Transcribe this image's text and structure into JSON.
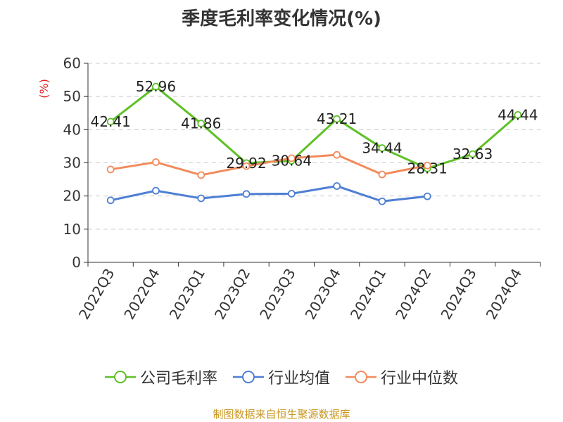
{
  "title": "季度毛利率变化情况(%)",
  "source": "制图数据来自恒生聚源数据库",
  "chart_data": {
    "type": "line",
    "title": "季度毛利率变化情况(%)",
    "ylabel": "(%)",
    "xlabel": "",
    "ylim": [
      0,
      60
    ],
    "yticks": [
      0,
      10,
      20,
      30,
      40,
      50,
      60
    ],
    "grid": true,
    "legend_position": "bottom",
    "categories": [
      "2022Q3",
      "2022Q4",
      "2023Q1",
      "2023Q2",
      "2023Q3",
      "2023Q4",
      "2024Q1",
      "2024Q2",
      "2024Q3",
      "2024Q4"
    ],
    "series": [
      {
        "name": "公司毛利率",
        "color": "#5ec126",
        "show_labels": true,
        "values": [
          42.41,
          52.96,
          41.86,
          29.92,
          30.64,
          43.21,
          34.44,
          28.31,
          32.63,
          44.44
        ]
      },
      {
        "name": "行业均值",
        "color": "#4e7fd4",
        "show_labels": false,
        "values": [
          18.7,
          21.6,
          19.3,
          20.6,
          20.7,
          23.0,
          18.4,
          19.9,
          null,
          null
        ]
      },
      {
        "name": "行业中位数",
        "color": "#f28b5b",
        "show_labels": false,
        "values": [
          28.0,
          30.2,
          26.3,
          29.0,
          31.4,
          32.4,
          26.5,
          29.2,
          null,
          null
        ]
      }
    ]
  }
}
